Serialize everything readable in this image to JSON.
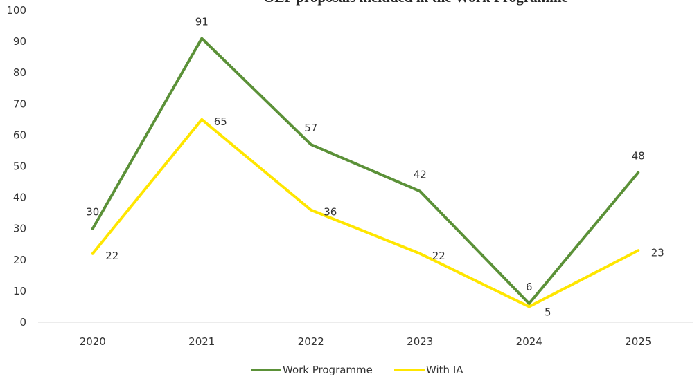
{
  "chart_data": {
    "type": "line",
    "title": "OLP proposals included in the Work Programme",
    "xlabel": "",
    "ylabel": "",
    "categories": [
      "2020",
      "2021",
      "2022",
      "2023",
      "2024",
      "2025"
    ],
    "ylim": [
      0,
      100
    ],
    "yticks": [
      "0",
      "10",
      "20",
      "30",
      "40",
      "50",
      "60",
      "70",
      "80",
      "90",
      "100"
    ],
    "grid": false,
    "legend_position": "bottom",
    "series": [
      {
        "name": "Work Programme",
        "values": [
          30,
          91,
          57,
          42,
          6,
          48
        ],
        "color": "#5b9138",
        "labels": [
          "30",
          "91",
          "57",
          "42",
          "6",
          "48"
        ]
      },
      {
        "name": "With IA",
        "values": [
          22,
          65,
          36,
          22,
          5,
          23
        ],
        "color": "#ffe600",
        "labels": [
          "22",
          "65",
          "36",
          "22",
          "5",
          "23"
        ]
      }
    ]
  }
}
